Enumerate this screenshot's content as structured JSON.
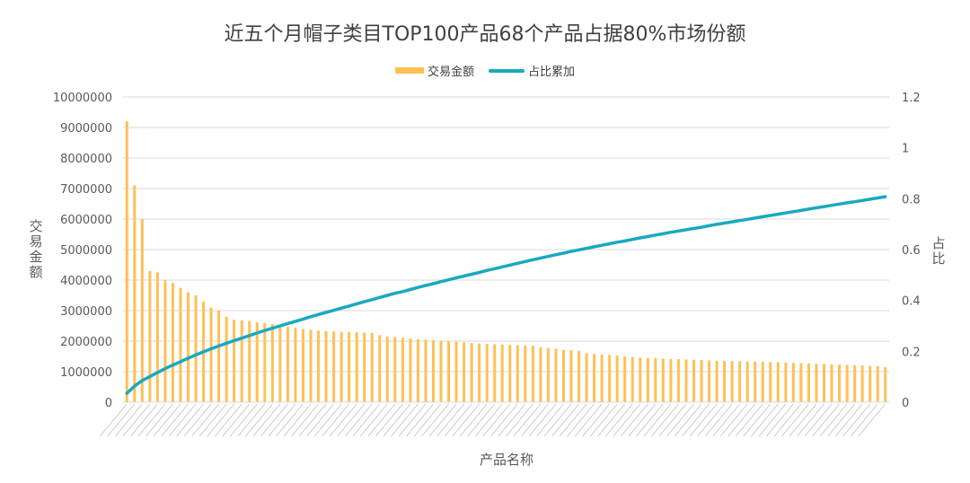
{
  "chart_data": {
    "type": "bar",
    "title": "近五个月帽子类目TOP100产品68个产品占据80%市场份额",
    "xlabel": "产品名称",
    "ylabel": "交易金额",
    "y2label": "占比",
    "ylim": [
      0,
      10000000
    ],
    "y2lim": [
      0,
      1.2
    ],
    "yticks": [
      "0",
      "1000000",
      "2000000",
      "3000000",
      "4000000",
      "5000000",
      "6000000",
      "7000000",
      "8000000",
      "9000000",
      "10000000"
    ],
    "y2ticks": [
      "0",
      "0.2",
      "0.4",
      "0.6",
      "0.8",
      "1",
      "1.2"
    ],
    "grid": true,
    "legend_position": "top-center",
    "colors": {
      "bar": "#ffc055",
      "line": "#19a9c0"
    },
    "series": [
      {
        "name": "交易金额",
        "type": "bar",
        "values": [
          9200000,
          7100000,
          6000000,
          4300000,
          4250000,
          4000000,
          3900000,
          3750000,
          3600000,
          3500000,
          3300000,
          3100000,
          3000000,
          2800000,
          2700000,
          2680000,
          2660000,
          2620000,
          2600000,
          2560000,
          2520000,
          2480000,
          2440000,
          2400000,
          2370000,
          2350000,
          2330000,
          2320000,
          2310000,
          2300000,
          2290000,
          2280000,
          2270000,
          2200000,
          2150000,
          2130000,
          2110000,
          2090000,
          2070000,
          2050000,
          2030000,
          2010000,
          2000000,
          1980000,
          1960000,
          1940000,
          1920000,
          1910000,
          1900000,
          1890000,
          1880000,
          1870000,
          1860000,
          1850000,
          1800000,
          1780000,
          1750000,
          1720000,
          1700000,
          1680000,
          1600000,
          1580000,
          1560000,
          1550000,
          1530000,
          1500000,
          1480000,
          1460000,
          1450000,
          1440000,
          1430000,
          1420000,
          1410000,
          1400000,
          1390000,
          1380000,
          1370000,
          1360000,
          1350000,
          1345000,
          1340000,
          1335000,
          1330000,
          1325000,
          1320000,
          1310000,
          1300000,
          1290000,
          1280000,
          1270000,
          1260000,
          1250000,
          1240000,
          1230000,
          1220000,
          1210000,
          1200000,
          1190000,
          1180000,
          1150000
        ]
      },
      {
        "name": "占比累加",
        "type": "line",
        "values": [
          0.035,
          0.063,
          0.085,
          0.101,
          0.117,
          0.132,
          0.146,
          0.159,
          0.173,
          0.186,
          0.198,
          0.21,
          0.221,
          0.232,
          0.242,
          0.252,
          0.262,
          0.272,
          0.282,
          0.291,
          0.3,
          0.309,
          0.318,
          0.327,
          0.336,
          0.345,
          0.353,
          0.361,
          0.37,
          0.378,
          0.387,
          0.395,
          0.403,
          0.412,
          0.42,
          0.428,
          0.435,
          0.443,
          0.451,
          0.459,
          0.466,
          0.474,
          0.481,
          0.489,
          0.496,
          0.503,
          0.51,
          0.518,
          0.525,
          0.532,
          0.539,
          0.546,
          0.553,
          0.56,
          0.567,
          0.573,
          0.58,
          0.586,
          0.593,
          0.599,
          0.605,
          0.611,
          0.617,
          0.623,
          0.629,
          0.634,
          0.64,
          0.646,
          0.651,
          0.657,
          0.662,
          0.668,
          0.673,
          0.678,
          0.683,
          0.688,
          0.694,
          0.699,
          0.704,
          0.709,
          0.714,
          0.719,
          0.724,
          0.729,
          0.734,
          0.739,
          0.744,
          0.749,
          0.754,
          0.759,
          0.764,
          0.769,
          0.774,
          0.779,
          0.784,
          0.788,
          0.793,
          0.798,
          0.803,
          0.808
        ]
      }
    ]
  }
}
